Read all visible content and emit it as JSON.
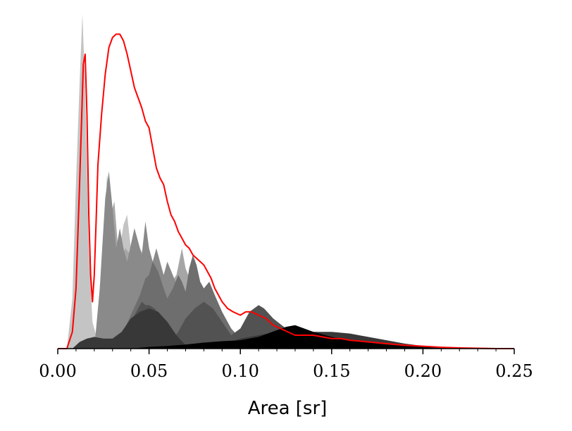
{
  "chart_data": {
    "type": "area",
    "title": "",
    "xlabel": "Area [sr]",
    "ylabel": "",
    "xlim": [
      0.0,
      0.25
    ],
    "ylim": [
      0,
      1
    ],
    "grid": false,
    "x_ticks": [
      "0.00",
      "0.05",
      "0.10",
      "0.15",
      "0.20",
      "0.25"
    ],
    "series": [
      {
        "fill": "#c4c4c4",
        "kind": "fill",
        "points": [
          [
            0.0,
            0
          ],
          [
            0.005,
            0
          ],
          [
            0.008,
            0.15
          ],
          [
            0.01,
            0.5
          ],
          [
            0.012,
            0.8
          ],
          [
            0.0135,
            1.0
          ],
          [
            0.015,
            0.78
          ],
          [
            0.017,
            0.3
          ],
          [
            0.019,
            0.08
          ],
          [
            0.021,
            0.04
          ],
          [
            0.025,
            0.22
          ],
          [
            0.028,
            0.26
          ],
          [
            0.03,
            0.3
          ],
          [
            0.032,
            0.22
          ],
          [
            0.034,
            0.3
          ],
          [
            0.036,
            0.37
          ],
          [
            0.038,
            0.4
          ],
          [
            0.04,
            0.3
          ],
          [
            0.043,
            0.34
          ],
          [
            0.046,
            0.28
          ],
          [
            0.05,
            0.24
          ],
          [
            0.055,
            0.2
          ],
          [
            0.06,
            0.16
          ],
          [
            0.065,
            0.1
          ],
          [
            0.07,
            0.06
          ],
          [
            0.08,
            0.03
          ],
          [
            0.09,
            0.01
          ],
          [
            0.1,
            0
          ],
          [
            0.25,
            0
          ]
        ]
      },
      {
        "fill": "#a6a6a6",
        "kind": "fill",
        "points": [
          [
            0.0,
            0
          ],
          [
            0.022,
            0
          ],
          [
            0.025,
            0.25
          ],
          [
            0.027,
            0.52
          ],
          [
            0.029,
            0.4
          ],
          [
            0.031,
            0.44
          ],
          [
            0.033,
            0.3
          ],
          [
            0.035,
            0.26
          ],
          [
            0.037,
            0.3
          ],
          [
            0.04,
            0.28
          ],
          [
            0.045,
            0.3
          ],
          [
            0.05,
            0.24
          ],
          [
            0.055,
            0.2
          ],
          [
            0.06,
            0.18
          ],
          [
            0.065,
            0.22
          ],
          [
            0.068,
            0.3
          ],
          [
            0.07,
            0.24
          ],
          [
            0.075,
            0.17
          ],
          [
            0.08,
            0.12
          ],
          [
            0.09,
            0.05
          ],
          [
            0.1,
            0.02
          ],
          [
            0.11,
            0
          ],
          [
            0.25,
            0
          ]
        ]
      },
      {
        "fill": "#8a8a8a",
        "kind": "fill",
        "points": [
          [
            0.0,
            0
          ],
          [
            0.02,
            0
          ],
          [
            0.023,
            0.18
          ],
          [
            0.026,
            0.45
          ],
          [
            0.028,
            0.53
          ],
          [
            0.03,
            0.42
          ],
          [
            0.032,
            0.3
          ],
          [
            0.034,
            0.36
          ],
          [
            0.036,
            0.3
          ],
          [
            0.038,
            0.26
          ],
          [
            0.04,
            0.31
          ],
          [
            0.042,
            0.36
          ],
          [
            0.044,
            0.32
          ],
          [
            0.046,
            0.28
          ],
          [
            0.048,
            0.38
          ],
          [
            0.05,
            0.3
          ],
          [
            0.052,
            0.26
          ],
          [
            0.054,
            0.3
          ],
          [
            0.056,
            0.26
          ],
          [
            0.058,
            0.22
          ],
          [
            0.06,
            0.26
          ],
          [
            0.063,
            0.22
          ],
          [
            0.066,
            0.18
          ],
          [
            0.07,
            0.15
          ],
          [
            0.075,
            0.1
          ],
          [
            0.08,
            0.07
          ],
          [
            0.09,
            0.03
          ],
          [
            0.1,
            0
          ],
          [
            0.25,
            0
          ]
        ]
      },
      {
        "fill": "#6e6e6e",
        "kind": "fill",
        "points": [
          [
            0.0,
            0
          ],
          [
            0.03,
            0
          ],
          [
            0.035,
            0.04
          ],
          [
            0.04,
            0.1
          ],
          [
            0.045,
            0.16
          ],
          [
            0.048,
            0.21
          ],
          [
            0.05,
            0.22
          ],
          [
            0.052,
            0.26
          ],
          [
            0.055,
            0.23
          ],
          [
            0.058,
            0.18
          ],
          [
            0.06,
            0.15
          ],
          [
            0.063,
            0.18
          ],
          [
            0.066,
            0.22
          ],
          [
            0.068,
            0.2
          ],
          [
            0.07,
            0.17
          ],
          [
            0.072,
            0.24
          ],
          [
            0.074,
            0.28
          ],
          [
            0.076,
            0.25
          ],
          [
            0.078,
            0.2
          ],
          [
            0.08,
            0.18
          ],
          [
            0.083,
            0.2
          ],
          [
            0.086,
            0.16
          ],
          [
            0.09,
            0.11
          ],
          [
            0.095,
            0.06
          ],
          [
            0.1,
            0.03
          ],
          [
            0.11,
            0
          ],
          [
            0.25,
            0
          ]
        ]
      },
      {
        "fill": "#525252",
        "kind": "fill",
        "points": [
          [
            0.0,
            0
          ],
          [
            0.035,
            0
          ],
          [
            0.038,
            0.05
          ],
          [
            0.04,
            0.08
          ],
          [
            0.042,
            0.1
          ],
          [
            0.044,
            0.12
          ],
          [
            0.046,
            0.14
          ],
          [
            0.048,
            0.13
          ],
          [
            0.05,
            0.13
          ],
          [
            0.053,
            0.12
          ],
          [
            0.056,
            0.1
          ],
          [
            0.06,
            0.06
          ],
          [
            0.063,
            0.03
          ],
          [
            0.066,
            0.05
          ],
          [
            0.07,
            0.09
          ],
          [
            0.075,
            0.12
          ],
          [
            0.08,
            0.14
          ],
          [
            0.085,
            0.12
          ],
          [
            0.09,
            0.08
          ],
          [
            0.095,
            0.04
          ],
          [
            0.1,
            0.06
          ],
          [
            0.105,
            0.11
          ],
          [
            0.11,
            0.13
          ],
          [
            0.113,
            0.12
          ],
          [
            0.118,
            0.09
          ],
          [
            0.125,
            0.06
          ],
          [
            0.135,
            0.04
          ],
          [
            0.15,
            0.03
          ],
          [
            0.17,
            0.02
          ],
          [
            0.19,
            0.01
          ],
          [
            0.21,
            0
          ],
          [
            0.25,
            0
          ]
        ]
      },
      {
        "fill": "#383838",
        "kind": "fill",
        "points": [
          [
            0.0,
            0
          ],
          [
            0.008,
            0
          ],
          [
            0.012,
            0.02
          ],
          [
            0.016,
            0.03
          ],
          [
            0.02,
            0.035
          ],
          [
            0.025,
            0.03
          ],
          [
            0.03,
            0.03
          ],
          [
            0.035,
            0.05
          ],
          [
            0.04,
            0.09
          ],
          [
            0.045,
            0.11
          ],
          [
            0.05,
            0.12
          ],
          [
            0.055,
            0.11
          ],
          [
            0.06,
            0.08
          ],
          [
            0.065,
            0.04
          ],
          [
            0.07,
            0.01
          ],
          [
            0.08,
            0.005
          ],
          [
            0.09,
            0.01
          ],
          [
            0.1,
            0.03
          ],
          [
            0.11,
            0.04
          ],
          [
            0.12,
            0.05
          ],
          [
            0.13,
            0.05
          ],
          [
            0.14,
            0.05
          ],
          [
            0.15,
            0.05
          ],
          [
            0.16,
            0.045
          ],
          [
            0.17,
            0.035
          ],
          [
            0.18,
            0.025
          ],
          [
            0.19,
            0.015
          ],
          [
            0.2,
            0.008
          ],
          [
            0.21,
            0.004
          ],
          [
            0.22,
            0
          ],
          [
            0.25,
            0
          ]
        ]
      },
      {
        "fill": "#000000",
        "kind": "fill",
        "points": [
          [
            0.0,
            0
          ],
          [
            0.04,
            0
          ],
          [
            0.05,
            0.005
          ],
          [
            0.06,
            0.008
          ],
          [
            0.07,
            0.012
          ],
          [
            0.08,
            0.018
          ],
          [
            0.09,
            0.022
          ],
          [
            0.1,
            0.025
          ],
          [
            0.11,
            0.035
          ],
          [
            0.115,
            0.045
          ],
          [
            0.12,
            0.055
          ],
          [
            0.125,
            0.065
          ],
          [
            0.13,
            0.07
          ],
          [
            0.135,
            0.06
          ],
          [
            0.14,
            0.05
          ],
          [
            0.15,
            0.035
          ],
          [
            0.16,
            0.025
          ],
          [
            0.17,
            0.018
          ],
          [
            0.18,
            0.012
          ],
          [
            0.19,
            0.008
          ],
          [
            0.2,
            0.005
          ],
          [
            0.21,
            0.003
          ],
          [
            0.22,
            0
          ],
          [
            0.25,
            0
          ]
        ]
      },
      {
        "stroke": "#ff0000",
        "kind": "line",
        "points": [
          [
            0.0,
            0
          ],
          [
            0.005,
            0
          ],
          [
            0.008,
            0.05
          ],
          [
            0.01,
            0.18
          ],
          [
            0.012,
            0.5
          ],
          [
            0.014,
            0.85
          ],
          [
            0.015,
            0.88
          ],
          [
            0.016,
            0.7
          ],
          [
            0.017,
            0.4
          ],
          [
            0.018,
            0.22
          ],
          [
            0.019,
            0.14
          ],
          [
            0.02,
            0.22
          ],
          [
            0.021,
            0.38
          ],
          [
            0.022,
            0.55
          ],
          [
            0.024,
            0.7
          ],
          [
            0.026,
            0.82
          ],
          [
            0.028,
            0.9
          ],
          [
            0.03,
            0.93
          ],
          [
            0.032,
            0.94
          ],
          [
            0.034,
            0.94
          ],
          [
            0.036,
            0.92
          ],
          [
            0.038,
            0.88
          ],
          [
            0.04,
            0.83
          ],
          [
            0.042,
            0.78
          ],
          [
            0.044,
            0.75
          ],
          [
            0.046,
            0.72
          ],
          [
            0.048,
            0.68
          ],
          [
            0.05,
            0.66
          ],
          [
            0.052,
            0.6
          ],
          [
            0.054,
            0.54
          ],
          [
            0.056,
            0.51
          ],
          [
            0.058,
            0.49
          ],
          [
            0.06,
            0.44
          ],
          [
            0.062,
            0.4
          ],
          [
            0.064,
            0.38
          ],
          [
            0.066,
            0.35
          ],
          [
            0.068,
            0.33
          ],
          [
            0.07,
            0.31
          ],
          [
            0.072,
            0.3
          ],
          [
            0.074,
            0.28
          ],
          [
            0.076,
            0.27
          ],
          [
            0.078,
            0.26
          ],
          [
            0.08,
            0.25
          ],
          [
            0.082,
            0.23
          ],
          [
            0.084,
            0.21
          ],
          [
            0.086,
            0.18
          ],
          [
            0.088,
            0.16
          ],
          [
            0.09,
            0.14
          ],
          [
            0.093,
            0.12
          ],
          [
            0.096,
            0.11
          ],
          [
            0.1,
            0.1
          ],
          [
            0.103,
            0.11
          ],
          [
            0.106,
            0.11
          ],
          [
            0.11,
            0.1
          ],
          [
            0.114,
            0.09
          ],
          [
            0.118,
            0.07
          ],
          [
            0.122,
            0.06
          ],
          [
            0.126,
            0.05
          ],
          [
            0.13,
            0.04
          ],
          [
            0.135,
            0.04
          ],
          [
            0.14,
            0.04
          ],
          [
            0.145,
            0.035
          ],
          [
            0.15,
            0.03
          ],
          [
            0.155,
            0.03
          ],
          [
            0.16,
            0.025
          ],
          [
            0.17,
            0.02
          ],
          [
            0.18,
            0.015
          ],
          [
            0.19,
            0.01
          ],
          [
            0.2,
            0.007
          ],
          [
            0.21,
            0.004
          ],
          [
            0.22,
            0.002
          ],
          [
            0.23,
            0.001
          ],
          [
            0.24,
            0
          ],
          [
            0.25,
            0
          ]
        ]
      }
    ]
  }
}
